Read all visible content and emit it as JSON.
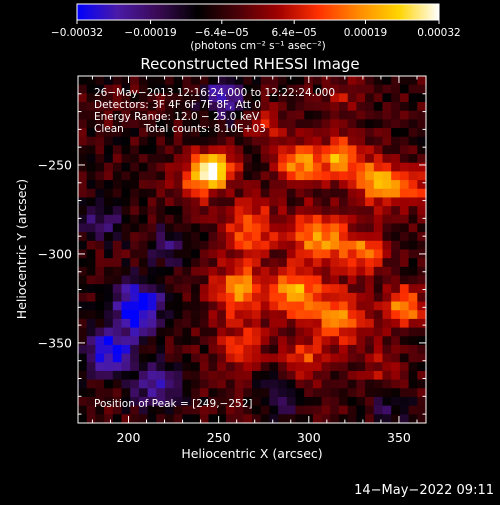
{
  "chart_data": {
    "type": "heatmap",
    "title": "Reconstructed RHESSI Image",
    "xlabel": "Heliocentric X (arcsec)",
    "ylabel": "Heliocentric Y (arcsec)",
    "xlim": [
      172,
      365
    ],
    "ylim": [
      -395,
      -200
    ],
    "x_ticks": [
      200,
      250,
      300,
      350
    ],
    "x_tick_labels": [
      "200",
      "250",
      "300",
      "350"
    ],
    "y_ticks": [
      -250,
      -300,
      -350
    ],
    "y_tick_labels": [
      "−250",
      "−300",
      "−350"
    ],
    "colorbar": {
      "min": -0.00032,
      "max": 0.00032,
      "ticks": [
        -0.00032,
        -0.00019,
        -6.4e-05,
        6.4e-05,
        0.00019,
        0.00032
      ],
      "tick_labels": [
        "−0.00032",
        "−0.00019",
        "−6.4e−05",
        "6.4e−05",
        "0.00019",
        "0.00032"
      ],
      "unit_label": "(photons cm⁻² s⁻¹ asec⁻²)",
      "colormap": [
        "#0000ff",
        "#4a1aa8",
        "#3a0a55",
        "#000000",
        "#4a0008",
        "#a00000",
        "#ff3000",
        "#ff8a00",
        "#ffd400",
        "#ffffff"
      ]
    },
    "sources": [
      {
        "x": 249,
        "y": -252,
        "amp": 0.00032,
        "sigma": 7
      },
      {
        "x": 238,
        "y": -258,
        "amp": 0.0002,
        "sigma": 9
      },
      {
        "x": 295,
        "y": -250,
        "amp": 0.00024,
        "sigma": 9
      },
      {
        "x": 318,
        "y": -246,
        "amp": 0.00026,
        "sigma": 8
      },
      {
        "x": 338,
        "y": -260,
        "amp": 0.00028,
        "sigma": 9
      },
      {
        "x": 357,
        "y": -262,
        "amp": 0.00018,
        "sigma": 7
      },
      {
        "x": 268,
        "y": -285,
        "amp": 0.00022,
        "sigma": 10
      },
      {
        "x": 305,
        "y": -290,
        "amp": 0.00026,
        "sigma": 10
      },
      {
        "x": 330,
        "y": -298,
        "amp": 0.0002,
        "sigma": 9
      },
      {
        "x": 262,
        "y": -320,
        "amp": 0.00024,
        "sigma": 11
      },
      {
        "x": 293,
        "y": -322,
        "amp": 0.00026,
        "sigma": 10
      },
      {
        "x": 318,
        "y": -335,
        "amp": 0.00024,
        "sigma": 10
      },
      {
        "x": 352,
        "y": -330,
        "amp": 0.00026,
        "sigma": 8
      },
      {
        "x": 262,
        "y": -352,
        "amp": 0.00016,
        "sigma": 9
      },
      {
        "x": 298,
        "y": -358,
        "amp": 0.00016,
        "sigma": 9
      },
      {
        "x": 340,
        "y": -362,
        "amp": 0.0001,
        "sigma": 8
      },
      {
        "x": 275,
        "y": -228,
        "amp": 0.00012,
        "sigma": 8
      },
      {
        "x": 320,
        "y": -212,
        "amp": 0.0001,
        "sigma": 7
      }
    ],
    "negative_regions": [
      {
        "x": 205,
        "y": -330,
        "amp": -0.0003,
        "sigma": 10
      },
      {
        "x": 190,
        "y": -355,
        "amp": -0.00026,
        "sigma": 9
      },
      {
        "x": 215,
        "y": -375,
        "amp": -0.00018,
        "sigma": 9
      },
      {
        "x": 185,
        "y": -280,
        "amp": -0.00014,
        "sigma": 8
      },
      {
        "x": 222,
        "y": -295,
        "amp": -0.00012,
        "sigma": 8
      },
      {
        "x": 252,
        "y": -213,
        "amp": -0.00022,
        "sigma": 8
      },
      {
        "x": 285,
        "y": -380,
        "amp": -0.00012,
        "sigma": 8
      },
      {
        "x": 345,
        "y": -388,
        "amp": -0.0001,
        "sigma": 7
      }
    ],
    "annotations": [
      "26−May−2013 12:16:24.000 to 12:22:24.000",
      "Detectors: 3F 4F 6F 7F 8F, Att 0",
      "Energy Range: 12.0 − 25.0 keV",
      "Clean      Total counts: 8.10E+03"
    ],
    "peak_label": "Position of Peak = [249,−252]",
    "footer_timestamp": "14−May−2022 09:11"
  }
}
